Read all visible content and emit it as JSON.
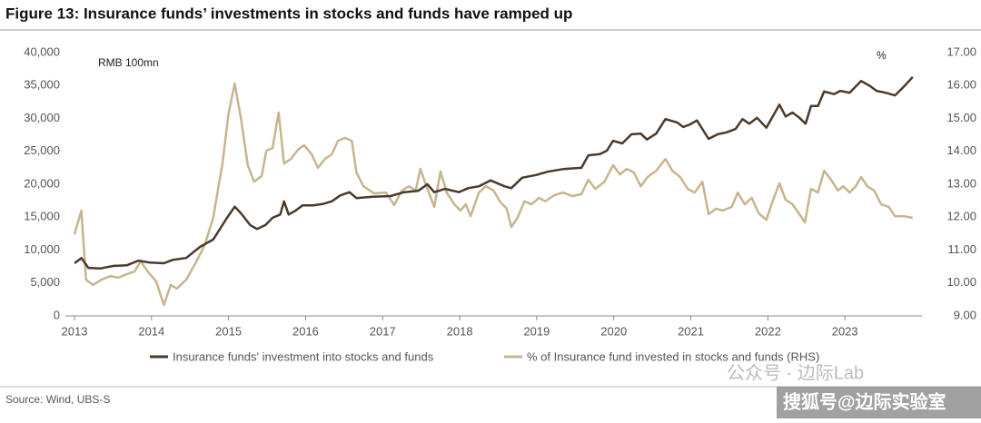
{
  "chart_data": {
    "type": "line",
    "title": "Figure 13: Insurance funds’ investments in stocks and funds have ramped up",
    "ylabel": "RMB 100mn",
    "y2label": "%",
    "source": "Source: Wind, UBS-S",
    "watermarks": [
      "公众号 · 边际Lab",
      "搜狐号@边际实验室"
    ],
    "xlim": [
      2013,
      2024
    ],
    "xticks": [
      2013,
      2014,
      2015,
      2016,
      2017,
      2018,
      2019,
      2020,
      2021,
      2022,
      2023
    ],
    "ylim": [
      0,
      40000
    ],
    "yticks": [
      0,
      {
        "value": 5000,
        "label": "5,000"
      },
      {
        "value": 10000,
        "label": "10,000"
      },
      {
        "value": 15000,
        "label": "15,000"
      },
      {
        "value": 20000,
        "label": "20,000"
      },
      {
        "value": 25000,
        "label": "25,000"
      },
      {
        "value": 30000,
        "label": "30,000"
      },
      {
        "value": 35000,
        "label": "35,000"
      },
      {
        "value": 40000,
        "label": "40,000"
      }
    ],
    "y2lim": [
      9,
      17
    ],
    "y2ticks": [
      {
        "value": 9,
        "label": "9.00"
      },
      {
        "value": 10,
        "label": "10.00"
      },
      {
        "value": 11,
        "label": "11.00"
      },
      {
        "value": 12,
        "label": "12.00"
      },
      {
        "value": 13,
        "label": "13.00"
      },
      {
        "value": 14,
        "label": "14.00"
      },
      {
        "value": 15,
        "label": "15.00"
      },
      {
        "value": 16,
        "label": "16.00"
      },
      {
        "value": 17,
        "label": "17.00"
      }
    ],
    "grid": false,
    "legend": "bottom",
    "series": [
      {
        "name": "Insurance funds' investment into stocks and funds",
        "color": "#4a3a2c",
        "x": [
          2013.0,
          2013.09,
          2013.18,
          2013.33,
          2013.51,
          2013.68,
          2013.83,
          2013.98,
          2014.16,
          2014.27,
          2014.45,
          2014.63,
          2014.8,
          2014.98,
          2015.08,
          2015.16,
          2015.28,
          2015.37,
          2015.48,
          2015.57,
          2015.67,
          2015.72,
          2015.78,
          2015.87,
          2015.96,
          2016.1,
          2016.22,
          2016.34,
          2016.45,
          2016.57,
          2016.66,
          2016.87,
          2017.1,
          2017.28,
          2017.46,
          2017.58,
          2017.67,
          2017.81,
          2017.99,
          2018.11,
          2018.25,
          2018.4,
          2018.58,
          2018.67,
          2018.81,
          2018.99,
          2019.14,
          2019.34,
          2019.58,
          2019.67,
          2019.82,
          2019.91,
          2019.99,
          2020.11,
          2020.23,
          2020.35,
          2020.43,
          2020.55,
          2020.67,
          2020.82,
          2020.9,
          2020.99,
          2021.08,
          2021.23,
          2021.35,
          2021.47,
          2021.58,
          2021.67,
          2021.76,
          2021.86,
          2021.98,
          2022.15,
          2022.23,
          2022.32,
          2022.41,
          2022.49,
          2022.56,
          2022.65,
          2022.73,
          2022.86,
          2022.94,
          2023.06,
          2023.21,
          2023.33,
          2023.41,
          2023.53,
          2023.65,
          2023.77,
          2023.88
        ],
        "values": [
          8000,
          8800,
          7300,
          7200,
          7600,
          7700,
          8400,
          8100,
          8000,
          8500,
          8800,
          10500,
          11600,
          14900,
          16600,
          15600,
          13800,
          13200,
          13800,
          14900,
          15400,
          17400,
          15400,
          16000,
          16800,
          16800,
          17000,
          17400,
          18300,
          18800,
          17900,
          18100,
          18200,
          18800,
          19000,
          20000,
          18800,
          19300,
          18800,
          19400,
          19700,
          20600,
          19700,
          19400,
          21000,
          21400,
          21900,
          22300,
          22500,
          24400,
          24600,
          25100,
          26600,
          26200,
          27600,
          27700,
          26800,
          27700,
          29900,
          29400,
          28700,
          29100,
          29700,
          26900,
          27600,
          27900,
          28400,
          29900,
          29200,
          30100,
          28600,
          32100,
          30300,
          30900,
          30100,
          29200,
          31900,
          31900,
          34100,
          33700,
          34200,
          33900,
          35700,
          34900,
          34200,
          33900,
          33500,
          34900,
          36300
        ]
      },
      {
        "name": "% of Insurance fund invested in stocks and funds (RHS)",
        "color": "#c8b48f",
        "axis": "y2",
        "x": [
          2013.0,
          2013.09,
          2013.15,
          2013.24,
          2013.35,
          2013.47,
          2013.57,
          2013.68,
          2013.78,
          2013.86,
          2013.96,
          2014.06,
          2014.16,
          2014.25,
          2014.33,
          2014.45,
          2014.57,
          2014.69,
          2014.8,
          2014.92,
          2015.0,
          2015.08,
          2015.16,
          2015.25,
          2015.33,
          2015.43,
          2015.49,
          2015.57,
          2015.65,
          2015.72,
          2015.81,
          2015.9,
          2015.98,
          2016.08,
          2016.16,
          2016.25,
          2016.34,
          2016.42,
          2016.51,
          2016.6,
          2016.66,
          2016.75,
          2016.89,
          2017.04,
          2017.15,
          2017.25,
          2017.34,
          2017.43,
          2017.49,
          2017.58,
          2017.67,
          2017.75,
          2017.83,
          2017.93,
          2018.01,
          2018.08,
          2018.14,
          2018.25,
          2018.34,
          2018.44,
          2018.52,
          2018.61,
          2018.67,
          2018.75,
          2018.84,
          2018.93,
          2019.03,
          2019.11,
          2019.23,
          2019.34,
          2019.46,
          2019.58,
          2019.67,
          2019.76,
          2019.88,
          2019.99,
          2020.08,
          2020.17,
          2020.26,
          2020.35,
          2020.44,
          2020.55,
          2020.67,
          2020.76,
          2020.86,
          2020.96,
          2021.05,
          2021.15,
          2021.23,
          2021.33,
          2021.41,
          2021.53,
          2021.61,
          2021.7,
          2021.79,
          2021.88,
          2021.98,
          2022.06,
          2022.15,
          2022.23,
          2022.32,
          2022.41,
          2022.48,
          2022.56,
          2022.65,
          2022.73,
          2022.82,
          2022.91,
          2022.98,
          2023.06,
          2023.14,
          2023.21,
          2023.29,
          2023.38,
          2023.47,
          2023.57,
          2023.65,
          2023.77,
          2023.88
        ],
        "values": [
          11.48,
          12.2,
          10.1,
          9.94,
          10.1,
          10.21,
          10.16,
          10.27,
          10.35,
          10.66,
          10.32,
          10.05,
          9.33,
          9.94,
          9.83,
          10.1,
          10.6,
          11.15,
          11.98,
          13.63,
          15.15,
          16.06,
          15.01,
          13.58,
          13.08,
          13.25,
          14.02,
          14.1,
          15.18,
          13.63,
          13.77,
          14.05,
          14.19,
          13.91,
          13.5,
          13.77,
          13.91,
          14.32,
          14.41,
          14.32,
          13.36,
          12.94,
          12.72,
          12.75,
          12.37,
          12.81,
          12.94,
          12.81,
          13.47,
          12.86,
          12.31,
          13.39,
          12.75,
          12.39,
          12.2,
          12.39,
          12.03,
          12.75,
          12.94,
          12.81,
          12.48,
          12.26,
          11.7,
          11.98,
          12.48,
          12.39,
          12.59,
          12.48,
          12.67,
          12.75,
          12.64,
          12.7,
          13.14,
          12.86,
          13.08,
          13.58,
          13.3,
          13.47,
          13.36,
          12.94,
          13.22,
          13.41,
          13.77,
          13.41,
          13.22,
          12.86,
          12.75,
          13.08,
          12.09,
          12.26,
          12.2,
          12.31,
          12.75,
          12.39,
          12.59,
          12.12,
          11.92,
          12.48,
          13.03,
          12.53,
          12.39,
          12.09,
          11.84,
          12.86,
          12.75,
          13.41,
          13.14,
          12.81,
          12.94,
          12.75,
          12.94,
          13.22,
          12.94,
          12.81,
          12.39,
          12.31,
          12.03,
          12.03,
          11.98
        ]
      }
    ]
  }
}
